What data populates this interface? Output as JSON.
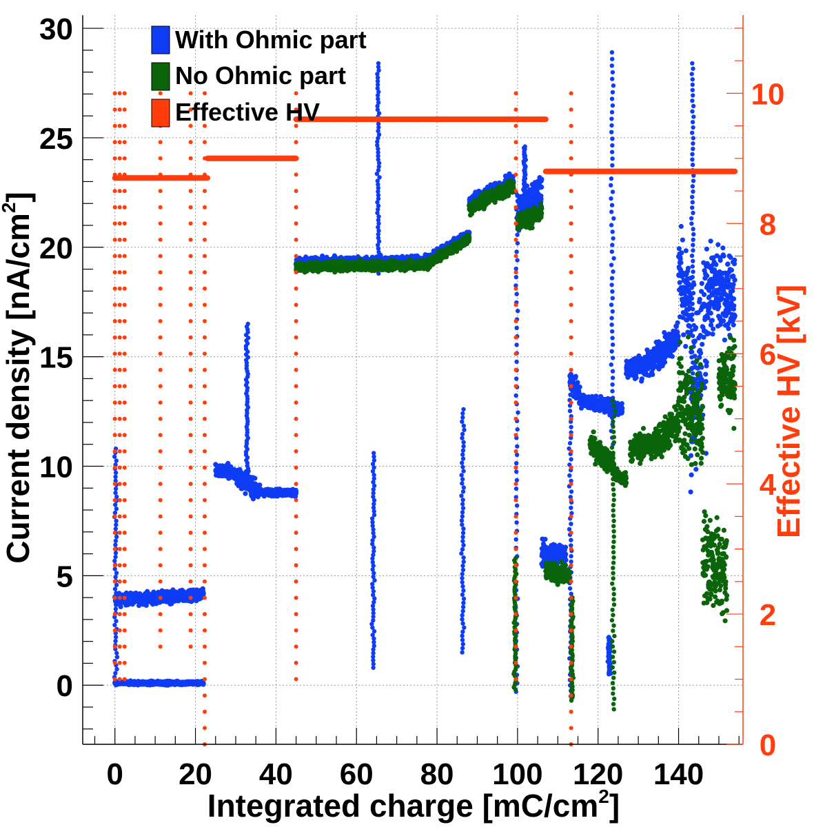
{
  "chart_data": {
    "type": "scatter",
    "xlabel": "Integrated charge [mC/cm",
    "xlabel_sup": "2",
    "xlabel_end": "]",
    "ylabel": "Current density [nA/cm",
    "ylabel_sup": "2",
    "ylabel_end": "]",
    "y2label": "Effective HV [kV]",
    "xlim": [
      -8,
      156
    ],
    "ylim": [
      -2.7,
      30.6
    ],
    "y2lim": [
      0,
      11.2
    ],
    "x_ticks": [
      0,
      20,
      40,
      60,
      80,
      100,
      120,
      140
    ],
    "x_tick_labels": [
      "0",
      "20",
      "40",
      "60",
      "80",
      "100",
      "120",
      "140"
    ],
    "y_ticks": [
      0,
      5,
      10,
      15,
      20,
      25,
      30
    ],
    "y_tick_labels": [
      "0",
      "5",
      "10",
      "15",
      "20",
      "25",
      "30"
    ],
    "y2_ticks": [
      0,
      2,
      4,
      6,
      8,
      10
    ],
    "y2_tick_labels": [
      "0",
      "2",
      "4",
      "6",
      "8",
      "10"
    ],
    "grid": true,
    "colors": {
      "with_ohmic": "#0f3cf5",
      "no_ohmic": "#0a640a",
      "hv": "#ff3d0d",
      "axis": "#000000"
    },
    "legend": [
      {
        "label": "With Ohmic part",
        "color": "#0f3cf5"
      },
      {
        "label": "No Ohmic part",
        "color": "#0a640a"
      },
      {
        "label": "Effective HV",
        "color": "#ff3d0d"
      }
    ],
    "series": [
      {
        "name": "With Ohmic part",
        "axis": "left",
        "color": "#0f3cf5",
        "segments": [
          {
            "x": [
              0,
              22
            ],
            "y": [
              3.9,
              4.1
            ],
            "noise": 0.25
          },
          {
            "x": [
              0,
              22
            ],
            "y": [
              0.1,
              0.1
            ],
            "noise": 0.08
          },
          {
            "x": [
              25,
              30
            ],
            "y": [
              9.8,
              9.7
            ],
            "noise": 0.3
          },
          {
            "x": [
              30,
              36
            ],
            "y": [
              9.6,
              8.8
            ],
            "noise": 0.4
          },
          {
            "x": [
              36,
              45
            ],
            "y": [
              8.8,
              8.8
            ],
            "noise": 0.15
          },
          {
            "x": [
              45,
              78
            ],
            "y": [
              19.3,
              19.4
            ],
            "noise": 0.2
          },
          {
            "x": [
              78,
              88
            ],
            "y": [
              19.5,
              20.6
            ],
            "noise": 0.2
          },
          {
            "x": [
              88,
              99
            ],
            "y": [
              22.0,
              23.0
            ],
            "noise": 0.3
          },
          {
            "x": [
              100,
              106
            ],
            "y": [
              21.6,
              22.5
            ],
            "noise": 0.8
          },
          {
            "x": [
              106,
              112
            ],
            "y": [
              6.0,
              6.0
            ],
            "noise": 0.5
          },
          {
            "x": [
              113,
              116
            ],
            "y": [
              14.0,
              13.0
            ],
            "noise": 0.5
          },
          {
            "x": [
              116,
              126
            ],
            "y": [
              13.0,
              12.6
            ],
            "noise": 0.3
          },
          {
            "x": [
              127,
              132
            ],
            "y": [
              14.5,
              14.6
            ],
            "noise": 0.5
          },
          {
            "x": [
              132,
              140
            ],
            "y": [
              14.6,
              16.0
            ],
            "noise": 0.6
          },
          {
            "x": [
              140,
              143
            ],
            "y": [
              19.0,
              17.0
            ],
            "noise": 2.0
          },
          {
            "x": [
              143,
              147
            ],
            "y": [
              12.0,
              16.0
            ],
            "noise": 4.0
          },
          {
            "x": [
              147,
              154
            ],
            "y": [
              18.0,
              18.0
            ],
            "noise": 1.8
          }
        ],
        "spikes": [
          {
            "x": 0.2,
            "y0": 0.0,
            "y1": 10.8
          },
          {
            "x": 32.8,
            "y0": 9.0,
            "y1": 16.5
          },
          {
            "x": 64.2,
            "y0": 0.8,
            "y1": 10.6
          },
          {
            "x": 86.4,
            "y0": 1.5,
            "y1": 12.6
          },
          {
            "x": 99.8,
            "y0": -0.3,
            "y1": 22.5
          },
          {
            "x": 101.8,
            "y0": 21.0,
            "y1": 24.6
          },
          {
            "x": 113.2,
            "y0": -0.5,
            "y1": 14.0
          },
          {
            "x": 123.5,
            "y0": 11.0,
            "y1": 28.9
          },
          {
            "x": 122.8,
            "y0": 0.5,
            "y1": 2.2
          },
          {
            "x": 143.5,
            "y0": 14.0,
            "y1": 28.4
          },
          {
            "x": 65.4,
            "y0": 18.8,
            "y1": 28.4
          }
        ]
      },
      {
        "name": "No Ohmic part",
        "axis": "left",
        "color": "#0a640a",
        "segments": [
          {
            "x": [
              45,
              78
            ],
            "y": [
              19.1,
              19.2
            ],
            "noise": 0.2
          },
          {
            "x": [
              78,
              88
            ],
            "y": [
              19.3,
              20.4
            ],
            "noise": 0.2
          },
          {
            "x": [
              88,
              99
            ],
            "y": [
              21.8,
              22.8
            ],
            "noise": 0.3
          },
          {
            "x": [
              100,
              106
            ],
            "y": [
              21.2,
              21.5
            ],
            "noise": 0.4
          },
          {
            "x": [
              107,
              113
            ],
            "y": [
              5.2,
              5.0
            ],
            "noise": 0.4
          },
          {
            "x": [
              118,
              124
            ],
            "y": [
              11.0,
              10.0
            ],
            "noise": 0.5
          },
          {
            "x": [
              124,
              127
            ],
            "y": [
              9.6,
              9.4
            ],
            "noise": 0.3
          },
          {
            "x": [
              128,
              134
            ],
            "y": [
              10.8,
              11.0
            ],
            "noise": 0.6
          },
          {
            "x": [
              134,
              140
            ],
            "y": [
              11.0,
              12.0
            ],
            "noise": 0.8
          },
          {
            "x": [
              140,
              146
            ],
            "y": [
              13.0,
              12.0
            ],
            "noise": 2.5
          },
          {
            "x": [
              146,
              152
            ],
            "y": [
              6.0,
              5.0
            ],
            "noise": 2.0
          },
          {
            "x": [
              150,
              154
            ],
            "y": [
              14.0,
              14.0
            ],
            "noise": 1.5
          }
        ],
        "spikes": [
          {
            "x": 99.4,
            "y0": -0.2,
            "y1": 5.8
          },
          {
            "x": 113.5,
            "y0": -0.7,
            "y1": 4.0
          },
          {
            "x": 123.8,
            "y0": -1.1,
            "y1": 13.0
          }
        ]
      },
      {
        "name": "Effective HV",
        "axis": "right",
        "color": "#ff3d0d",
        "segments": [
          {
            "x": [
              0,
              23
            ],
            "y": [
              8.7,
              8.7
            ]
          },
          {
            "x": [
              23,
              45
            ],
            "y": [
              9.0,
              9.0
            ]
          },
          {
            "x": [
              45,
              107
            ],
            "y": [
              9.6,
              9.6
            ]
          },
          {
            "x": [
              107,
              154
            ],
            "y": [
              8.8,
              8.8
            ]
          }
        ],
        "dotted_columns": [
          {
            "x": 0.0,
            "y0": 1.0,
            "y1": 10.2
          },
          {
            "x": 1.2,
            "y0": 1.0,
            "y1": 10.2
          },
          {
            "x": 2.4,
            "y0": 1.0,
            "y1": 10.2
          },
          {
            "x": 11.3,
            "y0": 1.5,
            "y1": 10.2
          },
          {
            "x": 18.8,
            "y0": 1.5,
            "y1": 10.2
          },
          {
            "x": 22.3,
            "y0": 0.0,
            "y1": 10.2
          },
          {
            "x": 45.0,
            "y0": 1.0,
            "y1": 10.2
          },
          {
            "x": 99.6,
            "y0": 1.0,
            "y1": 10.2
          },
          {
            "x": 113.3,
            "y0": 0.0,
            "y1": 10.0
          }
        ]
      }
    ]
  }
}
